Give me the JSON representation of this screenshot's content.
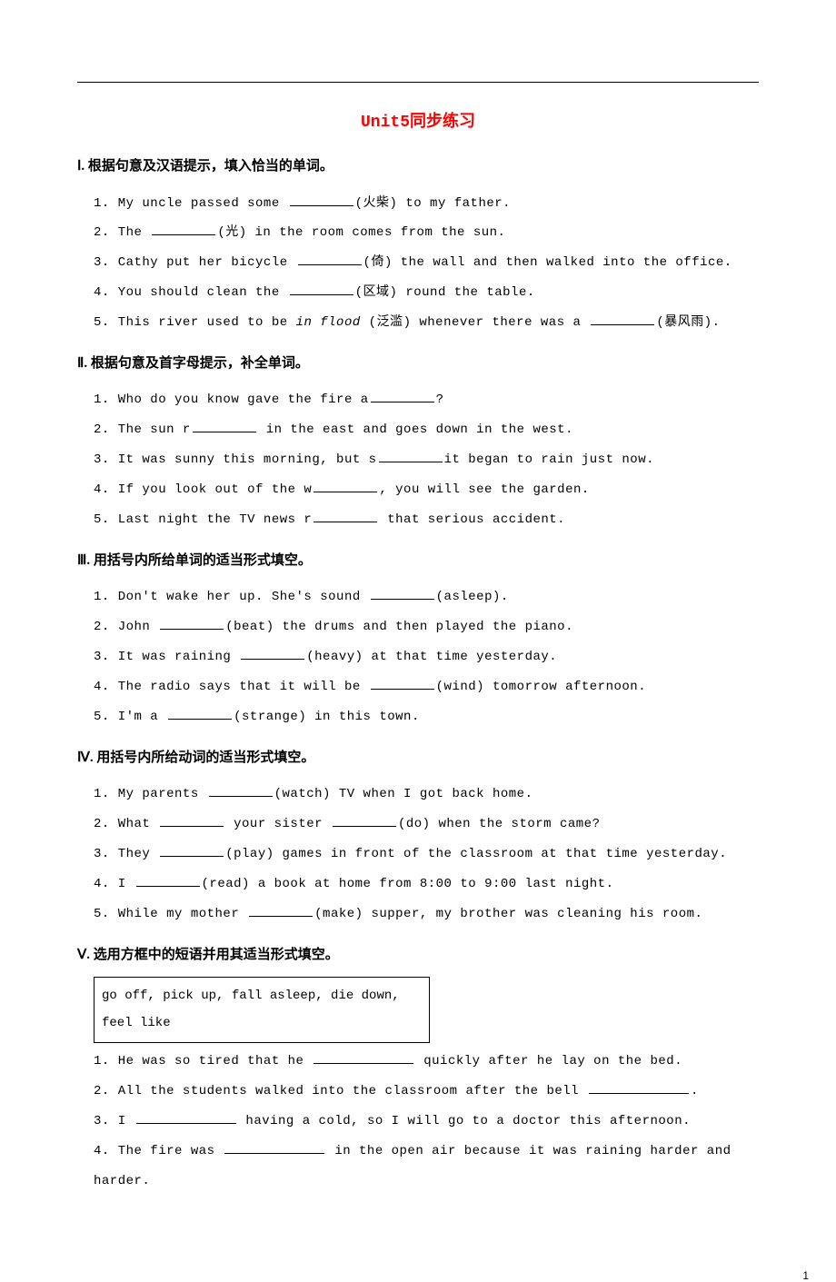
{
  "title": "Unit5同步练习",
  "sections": [
    {
      "head": "Ⅰ. 根据句意及汉语提示，填入恰当的单词。",
      "items": [
        {
          "pre": "1. My uncle passed some ",
          "post": "(火柴) to my father."
        },
        {
          "pre": "2. The ",
          "post": "(光) in the room comes from the sun."
        },
        {
          "pre": "3. Cathy put her bicycle ",
          "post": "(倚) the wall and then walked into the office."
        },
        {
          "pre": "4. You should clean the ",
          "post": "(区域) round the table."
        },
        {
          "pre": "5. This river used to be ",
          "ital": "in flood",
          "mid": " (泛滥) whenever there was a ",
          "post": "(暴风雨)."
        }
      ]
    },
    {
      "head": "Ⅱ. 根据句意及首字母提示，补全单词。",
      "items": [
        {
          "pre": "1. Who do you know gave the fire a",
          "post": "?"
        },
        {
          "pre": "2. The sun r",
          "post": " in the east and goes down  in the west."
        },
        {
          "pre": "3. It was sunny this morning, but s",
          "post": "it began to rain just now."
        },
        {
          "pre": "4. If you look out of the w",
          "post": ", you will see the garden."
        },
        {
          "pre": "5. Last night the TV news r",
          "post": " that serious accident."
        }
      ]
    },
    {
      "head": "Ⅲ. 用括号内所给单词的适当形式填空。",
      "items": [
        {
          "pre": "1. Don't wake her up. She's sound ",
          "post": "(asleep)."
        },
        {
          "pre": "2. John ",
          "post": "(beat) the drums and then played the piano."
        },
        {
          "pre": "3. It was raining ",
          "post": "(heavy) at that time yesterday."
        },
        {
          "pre": "4. The radio says that it will be ",
          "post": "(wind) tomorrow afternoon."
        },
        {
          "pre": "5. I'm a ",
          "post": "(strange) in this town."
        }
      ]
    },
    {
      "head": "Ⅳ. 用括号内所给动词的适当形式填空。",
      "items": [
        {
          "pre": "1. My parents ",
          "post": "(watch) TV when I got back home."
        },
        {
          "pre": "2. What ",
          "mid": " your sister ",
          "post": "(do) when the storm came?"
        },
        {
          "pre": "3. They ",
          "post": "(play) games in front of the classroom at that time yesterday."
        },
        {
          "pre": "4. I ",
          "post": "(read) a book at home from 8:00 to 9:00 last night."
        },
        {
          "pre": "5. While my mother ",
          "post": "(make) supper, my brother was cleaning his room."
        }
      ]
    },
    {
      "head": "Ⅴ. 选用方框中的短语并用其适当形式填空。",
      "box": "go off, pick up, fall asleep, die down,\nfeel like",
      "items": [
        {
          "pre": "1. He was so tired that he ",
          "wide": true,
          "post": " quickly after he lay on the bed."
        },
        {
          "pre": "2. All the students walked into the classroom after the bell ",
          "wide": true,
          "post": "."
        },
        {
          "pre": "3. I ",
          "wide": true,
          "post": " having a cold, so I will go to a doctor this afternoon."
        },
        {
          "pre": "4. The fire was ",
          "wide": true,
          "post": " in the open air because it was raining harder and harder."
        }
      ]
    }
  ],
  "pagefoot": "1"
}
